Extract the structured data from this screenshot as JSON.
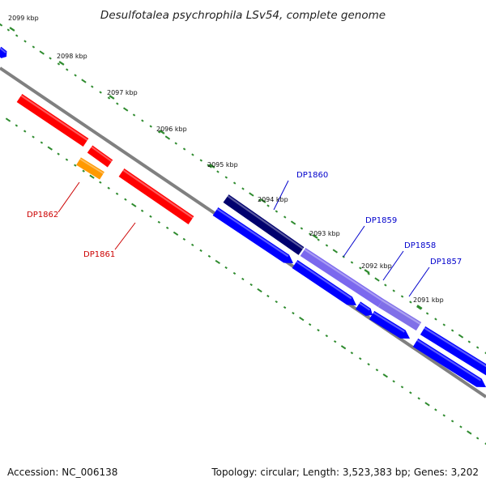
{
  "title": "Desulfotalea psychrophila LSv54, complete genome",
  "footer": {
    "accession": "Accession: NC_006138",
    "summary": "Topology: circular; Length: 3,523,383 bp; Genes: 3,202"
  },
  "colors": {
    "background": "#ffffff",
    "backbone": "#808080",
    "dots": "#2e8b2e",
    "red_gene": "#ff0000",
    "orange_gene": "#ff9900",
    "blue_gene": "#0000ff",
    "navy_gene": "#00006e",
    "lavender_gene": "#7b68ee",
    "red_label": "#cc0000",
    "blue_label": "#0000cc"
  },
  "ticks": [
    {
      "label": "2099 kbp"
    },
    {
      "label": "2098 kbp"
    },
    {
      "label": "2097 kbp"
    },
    {
      "label": "2096 kbp"
    },
    {
      "label": "2095 kbp"
    },
    {
      "label": "2094 kbp"
    },
    {
      "label": "2093 kbp"
    },
    {
      "label": "2092 kbp"
    },
    {
      "label": "2091 kbp"
    }
  ],
  "gene_labels": [
    {
      "label": "DP1862",
      "strand_color": "red"
    },
    {
      "label": "DP1861",
      "strand_color": "red"
    },
    {
      "label": "DP1860",
      "strand_color": "blue"
    },
    {
      "label": "DP1859",
      "strand_color": "blue"
    },
    {
      "label": "DP1858",
      "strand_color": "blue"
    },
    {
      "label": "DP1857",
      "strand_color": "blue"
    }
  ]
}
